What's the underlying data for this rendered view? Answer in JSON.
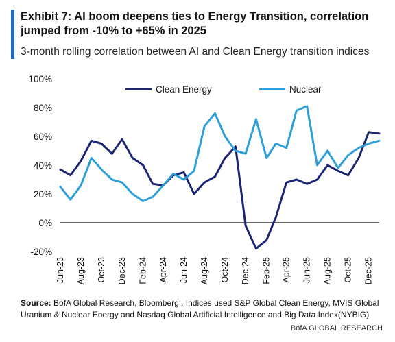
{
  "header": {
    "title": "Exhibit 7: AI boom deepens ties to Energy Transition, correlation jumped from -10% to +65% in 2025",
    "subtitle": "3-month rolling correlation between AI and Clean Energy transition indices"
  },
  "footer": {
    "source_label": "Source:",
    "source_text": " BofA Global Research, Bloomberg . Indices used S&P Global Clean Energy, MVIS Global Uranium & Nuclear Energy and Nasdaq Global Artificial Intelligence and Big Data Index(NYBIG)",
    "brand": "BofA GLOBAL RESEARCH"
  },
  "colors": {
    "clean_energy": "#1b2574",
    "nuclear": "#2e9fd9",
    "title_bar": "#1f6fc5",
    "axis": "#000000"
  },
  "chart_data": {
    "type": "line",
    "title": "",
    "xlabel": "",
    "ylabel": "",
    "ylim": [
      -20,
      100
    ],
    "yticks": [
      "100%",
      "80%",
      "60%",
      "40%",
      "20%",
      "0%",
      "-20%"
    ],
    "yticks_values": [
      100,
      80,
      60,
      40,
      20,
      0,
      -20
    ],
    "xticks": [
      "Jun-23",
      "Aug-23",
      "Oct-23",
      "Dec-23",
      "Feb-24",
      "Apr-24",
      "Jun-24",
      "Aug-24",
      "Oct-24",
      "Dec-24",
      "Feb-25",
      "Apr-25",
      "Jun-25",
      "Aug-25",
      "Oct-25",
      "Dec-25"
    ],
    "x_range": [
      "2023-06",
      "2026-01"
    ],
    "legend_position": "top",
    "grid": false,
    "series": [
      {
        "name": "Clean Energy",
        "color": "#1b2574",
        "x": [
          "2023-06",
          "2023-07",
          "2023-08",
          "2023-09",
          "2023-10",
          "2023-11",
          "2023-12",
          "2024-01",
          "2024-02",
          "2024-03",
          "2024-04",
          "2024-05",
          "2024-06",
          "2024-07",
          "2024-08",
          "2024-09",
          "2024-10",
          "2024-11",
          "2024-12",
          "2025-01",
          "2025-02",
          "2025-03",
          "2025-04",
          "2025-05",
          "2025-06",
          "2025-07",
          "2025-08",
          "2025-09",
          "2025-10",
          "2025-11",
          "2025-12",
          "2026-01"
        ],
        "values": [
          37,
          33,
          43,
          57,
          55,
          48,
          58,
          45,
          40,
          27,
          26,
          33,
          35,
          20,
          28,
          32,
          45,
          53,
          -2,
          -18,
          -12,
          4,
          28,
          30,
          27,
          30,
          40,
          36,
          33,
          45,
          63,
          62
        ]
      },
      {
        "name": "Nuclear",
        "color": "#2e9fd9",
        "x": [
          "2023-06",
          "2023-07",
          "2023-08",
          "2023-09",
          "2023-10",
          "2023-11",
          "2023-12",
          "2024-01",
          "2024-02",
          "2024-03",
          "2024-04",
          "2024-05",
          "2024-06",
          "2024-07",
          "2024-08",
          "2024-09",
          "2024-10",
          "2024-11",
          "2024-12",
          "2025-01",
          "2025-02",
          "2025-03",
          "2025-04",
          "2025-05",
          "2025-06",
          "2025-07",
          "2025-08",
          "2025-09",
          "2025-10",
          "2025-11",
          "2025-12",
          "2026-01"
        ],
        "values": [
          25,
          16,
          26,
          45,
          37,
          30,
          28,
          20,
          15,
          18,
          26,
          34,
          30,
          36,
          67,
          76,
          60,
          50,
          48,
          72,
          45,
          55,
          52,
          78,
          81,
          40,
          50,
          38,
          47,
          52,
          55,
          57
        ]
      }
    ]
  }
}
